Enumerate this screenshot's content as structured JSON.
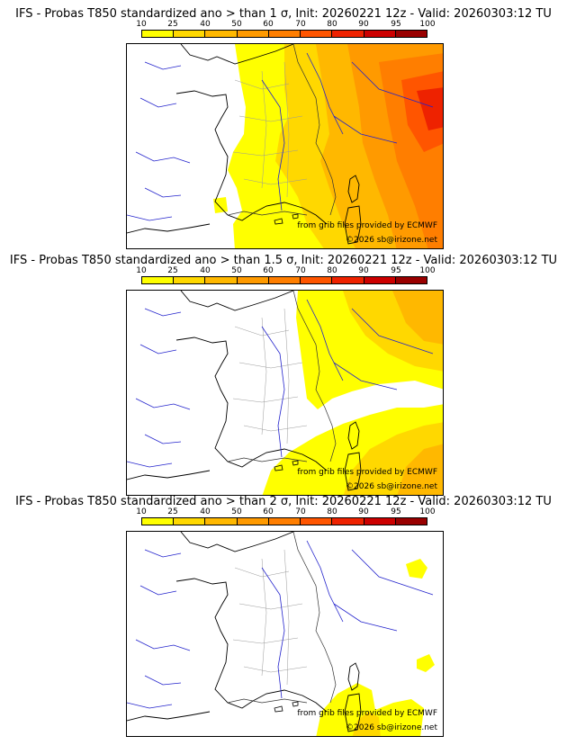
{
  "colorbar": {
    "ticks": [
      "10",
      "25",
      "40",
      "50",
      "60",
      "70",
      "80",
      "90",
      "95",
      "100"
    ],
    "colors": [
      "#ffff00",
      "#ffd800",
      "#ffb800",
      "#ff9a00",
      "#ff7e00",
      "#ff5500",
      "#ee2200",
      "#cc0000",
      "#990000"
    ]
  },
  "panels": [
    {
      "title": "IFS - Probas T850  standardized ano > than 1 σ, Init: 20260221 12z - Valid: 20260303:12 TU",
      "credit_source": "from grib files provided by ECMWF",
      "credit_copyright": "©2026 sb@irizone.net"
    },
    {
      "title": "IFS - Probas T850  standardized ano > than 1.5 σ, Init: 20260221 12z - Valid: 20260303:12 TU",
      "credit_source": "from grib files provided by ECMWF",
      "credit_copyright": "©2026 sb@irizone.net"
    },
    {
      "title": "IFS - Probas T850  standardized ano > than 2 σ, Init: 20260221 12z - Valid: 20260303:12 TU",
      "credit_source": "from grib files provided by ECMWF",
      "credit_copyright": "©2026 sb@irizone.net"
    }
  ]
}
